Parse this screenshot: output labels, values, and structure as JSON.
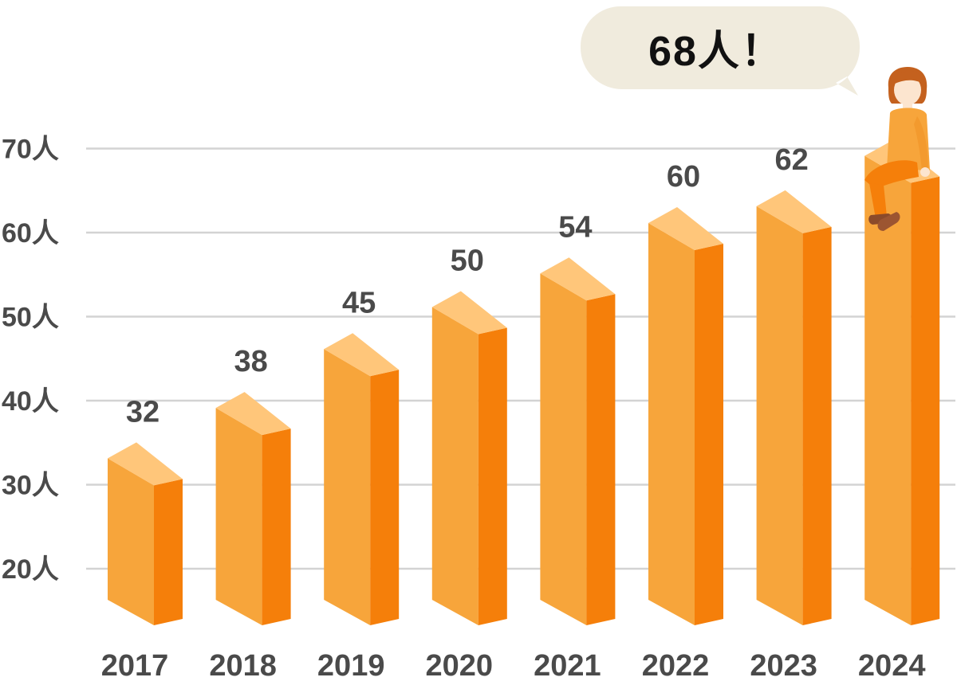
{
  "chart_data": {
    "type": "bar",
    "title": "",
    "xlabel": "",
    "ylabel": "",
    "categories": [
      "2017",
      "2018",
      "2019",
      "2020",
      "2021",
      "2022",
      "2023",
      "2024"
    ],
    "values": [
      32,
      38,
      45,
      50,
      54,
      60,
      62,
      68
    ],
    "data_labels": [
      "32",
      "38",
      "45",
      "50",
      "54",
      "60",
      "62",
      ""
    ],
    "ylim": [
      16,
      76
    ],
    "yticks": [
      20,
      30,
      40,
      50,
      60,
      70
    ],
    "ytick_labels": [
      "20人",
      "30人",
      "40人",
      "50人",
      "60人",
      "70人"
    ],
    "grid": true,
    "style": "3d-bars"
  },
  "callout": {
    "text": "68人！",
    "target_category": "2024",
    "icon": "seated-person-icon"
  },
  "colors": {
    "bar_front": "#F7A53B",
    "bar_side": "#F57F0A",
    "bar_top": "#FFC67A",
    "grid": "#D3D3D3",
    "callout_bg": "#F0EBDD",
    "text": "#4A4A4A"
  }
}
